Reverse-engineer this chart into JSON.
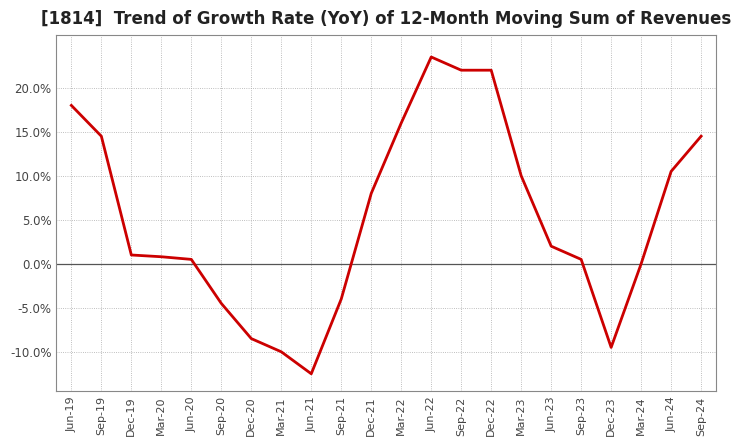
{
  "title": "[1814]  Trend of Growth Rate (YoY) of 12-Month Moving Sum of Revenues",
  "title_fontsize": 12,
  "line_color": "#cc0000",
  "background_color": "#ffffff",
  "grid_color": "#aaaaaa",
  "tick_labels": [
    "Jun-19",
    "Sep-19",
    "Dec-19",
    "Mar-20",
    "Jun-20",
    "Sep-20",
    "Dec-20",
    "Mar-21",
    "Jun-21",
    "Sep-21",
    "Dec-21",
    "Mar-22",
    "Jun-22",
    "Sep-22",
    "Dec-22",
    "Mar-23",
    "Jun-23",
    "Sep-23",
    "Dec-23",
    "Mar-24",
    "Jun-24",
    "Sep-24"
  ],
  "values": [
    18.0,
    14.5,
    1.0,
    0.8,
    0.5,
    -4.5,
    -8.5,
    -10.0,
    -12.5,
    -4.0,
    8.0,
    16.0,
    23.5,
    22.0,
    22.0,
    10.0,
    2.0,
    0.5,
    -9.5,
    0.0,
    10.5,
    14.5
  ],
  "ylim": [
    -14.5,
    26.0
  ],
  "yticks": [
    -10.0,
    -5.0,
    0.0,
    5.0,
    10.0,
    15.0,
    20.0
  ]
}
